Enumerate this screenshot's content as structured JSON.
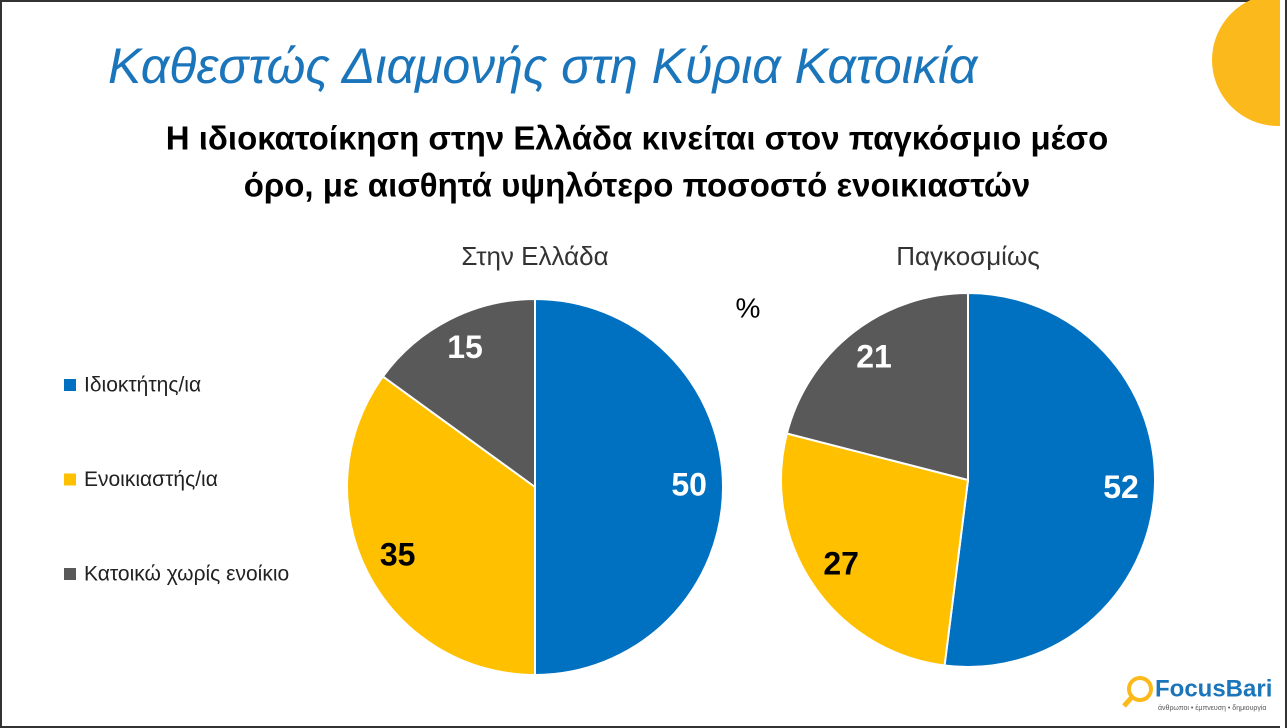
{
  "title": "Καθεστώς Διαμονής στη Κύρια Κατοικία",
  "subtitle": [
    "Η ιδιοκατοίκηση στην Ελλάδα κινείται στον παγκόσμιο μέσο",
    "όρο, με αισθητά υψηλότερο ποσοστό ενοικιαστών"
  ],
  "unit": "%",
  "logo": {
    "name": "FocusBari",
    "tagline": "άνθρωποι • έμπνευση • δημιουργία"
  },
  "chart_data": [
    {
      "type": "pie",
      "title": "Στην Ελλάδα",
      "categories": [
        "Ιδιοκτήτης/ια",
        "Ενοικιαστής/ια",
        "Κατοικώ χωρίς ενοίκιο"
      ],
      "values": [
        50,
        35,
        15
      ],
      "colors": [
        "#0070c0",
        "#ffc000",
        "#595959"
      ],
      "label_colors": [
        "#ffffff",
        "#000000",
        "#ffffff"
      ]
    },
    {
      "type": "pie",
      "title": "Παγκοσμίως",
      "categories": [
        "Ιδιοκτήτης/ια",
        "Ενοικιαστής/ια",
        "Κατοικώ χωρίς ενοίκιο"
      ],
      "values": [
        52,
        27,
        21
      ],
      "colors": [
        "#0070c0",
        "#ffc000",
        "#595959"
      ],
      "label_colors": [
        "#ffffff",
        "#000000",
        "#ffffff"
      ]
    }
  ]
}
